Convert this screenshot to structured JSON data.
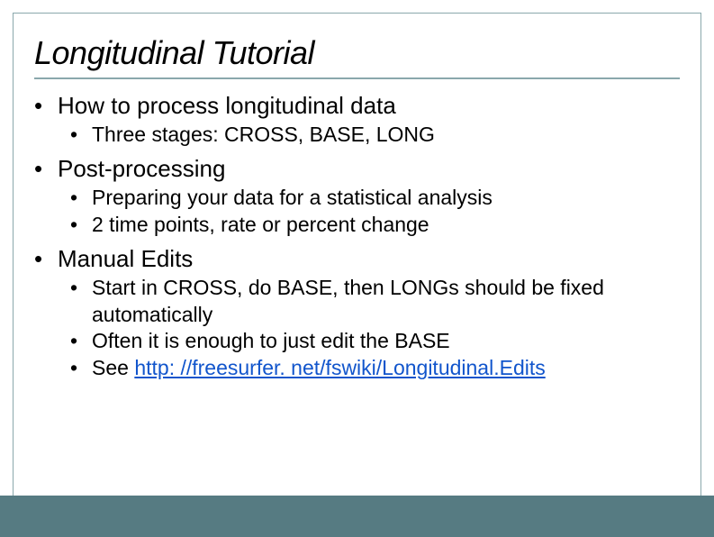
{
  "colors": {
    "border": "#8aa8ac",
    "underline": "#8aa8ac",
    "footer_band": "#567b82",
    "link": "#1155cc",
    "text": "#000000",
    "background": "#ffffff"
  },
  "typography": {
    "title_fontsize": 36,
    "title_italic": true,
    "level1_fontsize": 26,
    "level2_fontsize": 23,
    "font_family": "Arial"
  },
  "title": "Longitudinal Tutorial",
  "bullets": [
    {
      "text": "How to process longitudinal data",
      "children": [
        "Three stages: CROSS, BASE, LONG"
      ]
    },
    {
      "text": "Post-processing",
      "children": [
        "Preparing your data for a statistical analysis",
        "2 time points, rate or percent change"
      ]
    },
    {
      "text": "Manual Edits",
      "children": [
        "Start in CROSS, do BASE, then LONGs should be fixed automatically",
        "Often it is enough to just edit the BASE"
      ],
      "link_child": {
        "prefix": "See ",
        "link_text": "http: //freesurfer. net/fswiki/Longitudinal.Edits"
      }
    }
  ]
}
